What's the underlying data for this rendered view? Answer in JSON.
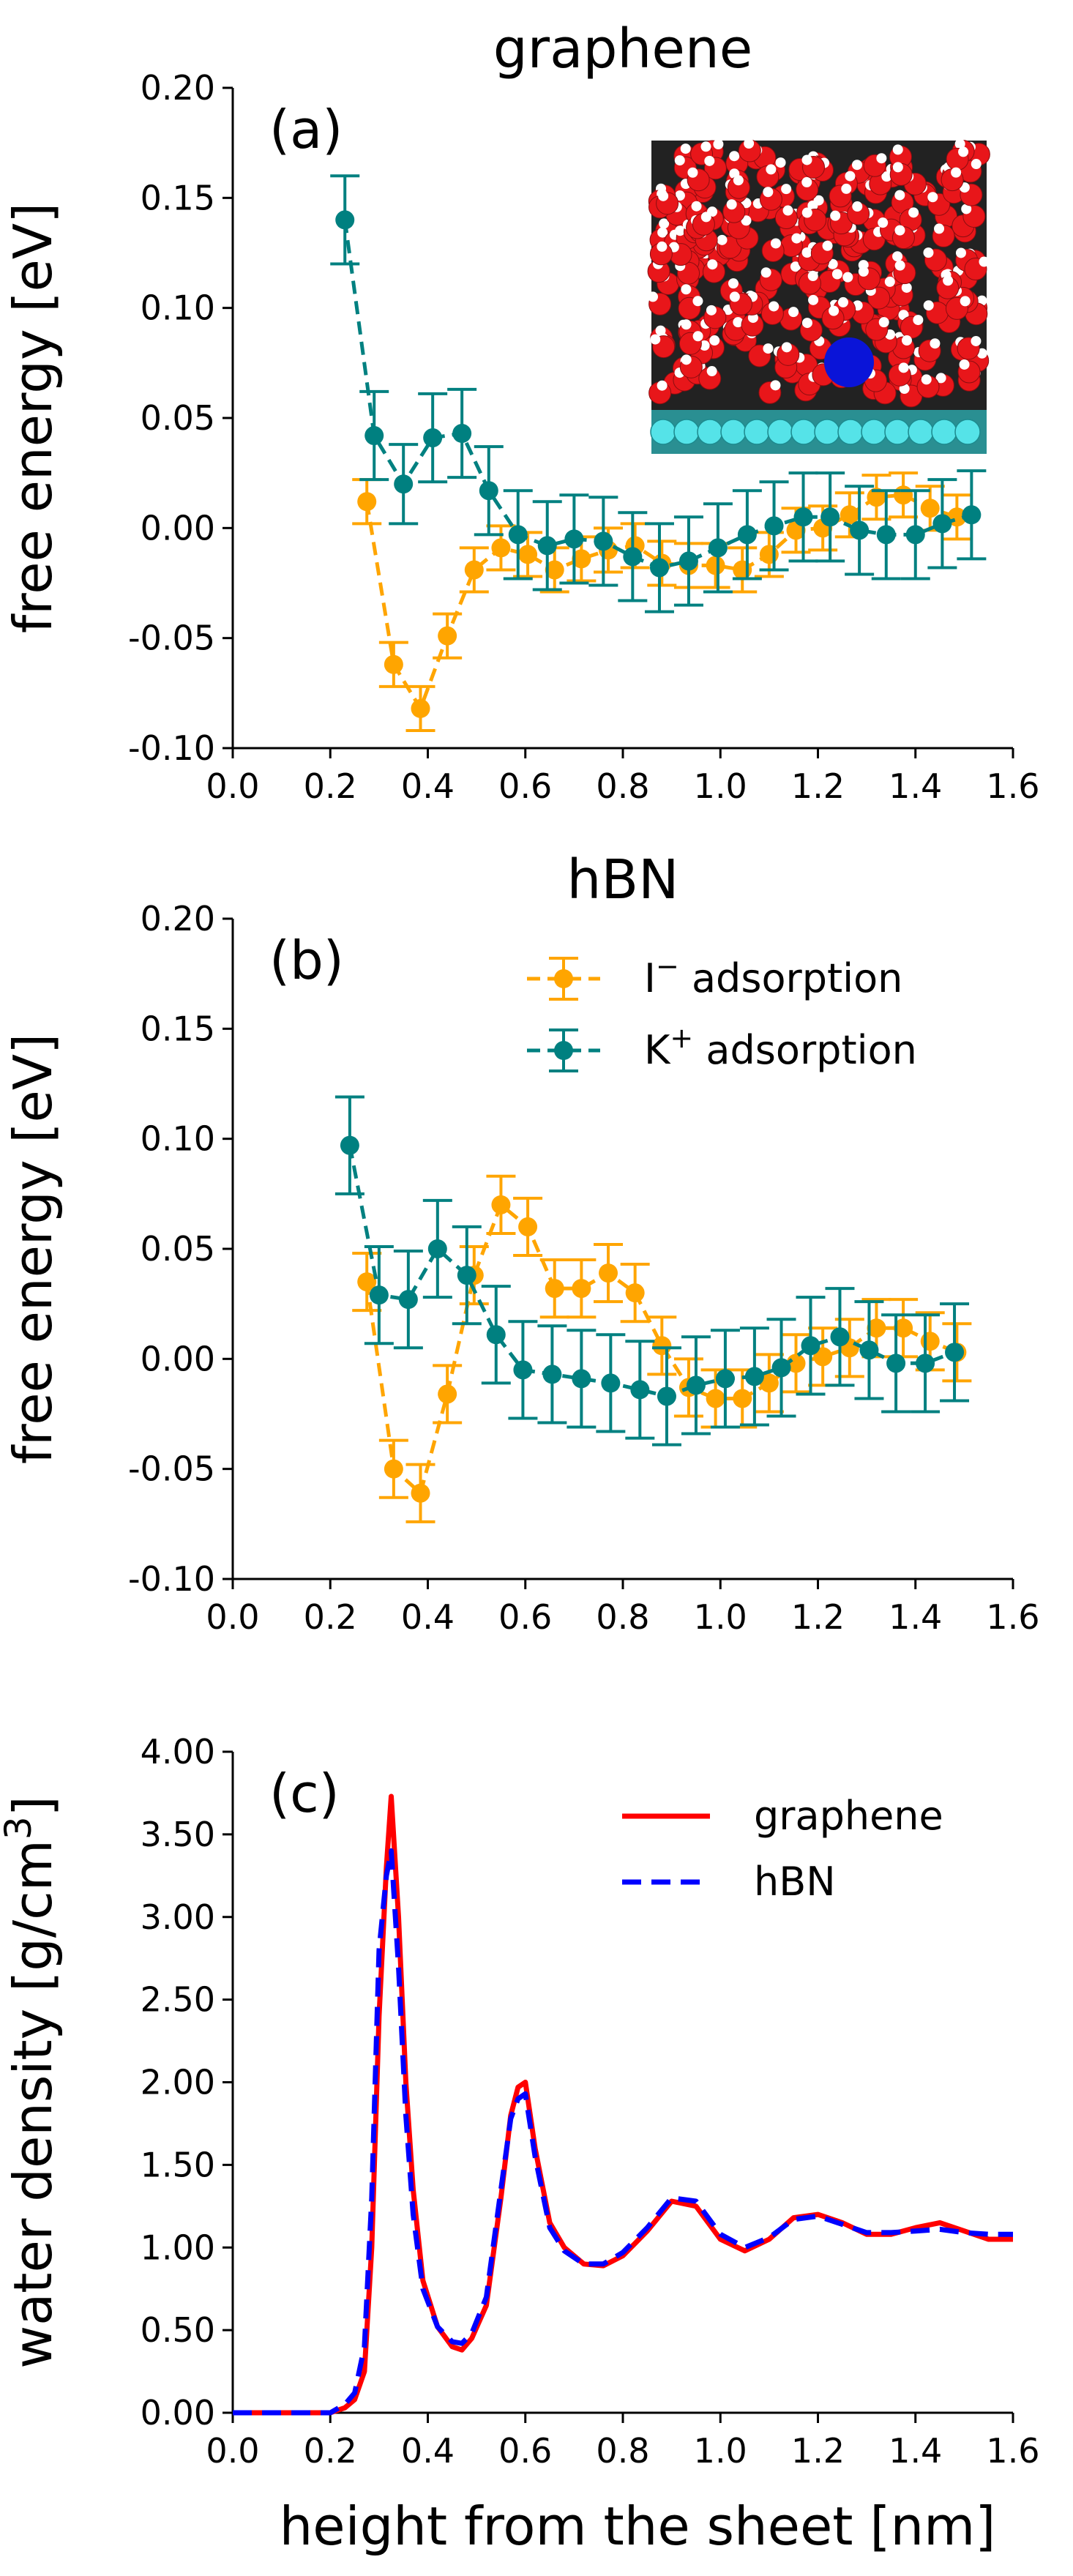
{
  "colors": {
    "iodide": "#ffa500",
    "potassium": "#008080",
    "graphene_line": "#ff0000",
    "hbn_line": "#0000ff",
    "water_oxygen": "#e8161a",
    "water_hydrogen": "#ffffff",
    "ion": "#0a14d8",
    "sheet": "#55e3e8"
  },
  "chart_data": [
    {
      "id": "a",
      "type": "scatter",
      "title": "graphene",
      "panel_label": "(a)",
      "xlabel": "",
      "ylabel": "free energy [eV]",
      "xlim": [
        0.0,
        1.6
      ],
      "ylim": [
        -0.1,
        0.2
      ],
      "xticks": [
        "0.0",
        "0.2",
        "0.4",
        "0.6",
        "0.8",
        "1.0",
        "1.2",
        "1.4",
        "1.6"
      ],
      "yticks": [
        "-0.10",
        "-0.05",
        "0.00",
        "0.05",
        "0.10",
        "0.15",
        "0.20"
      ],
      "inset": "simulation-snapshot",
      "series": [
        {
          "key": "iodide",
          "x": [
            0.275,
            0.33,
            0.385,
            0.44,
            0.495,
            0.55,
            0.605,
            0.66,
            0.715,
            0.77,
            0.825,
            0.88,
            0.935,
            0.99,
            1.045,
            1.1,
            1.155,
            1.21,
            1.265,
            1.32,
            1.375,
            1.43,
            1.485
          ],
          "y": [
            0.012,
            -0.062,
            -0.082,
            -0.049,
            -0.019,
            -0.009,
            -0.012,
            -0.019,
            -0.014,
            -0.01,
            -0.008,
            -0.016,
            -0.017,
            -0.017,
            -0.019,
            -0.012,
            -0.001,
            0.0,
            0.006,
            0.014,
            0.015,
            0.009,
            0.005
          ],
          "err": [
            0.01,
            0.01,
            0.01,
            0.01,
            0.01,
            0.01,
            0.01,
            0.01,
            0.01,
            0.01,
            0.01,
            0.01,
            0.01,
            0.01,
            0.01,
            0.01,
            0.01,
            0.01,
            0.01,
            0.01,
            0.01,
            0.01,
            0.01
          ]
        },
        {
          "key": "potassium",
          "x": [
            0.23,
            0.29,
            0.35,
            0.41,
            0.47,
            0.525,
            0.585,
            0.645,
            0.7,
            0.76,
            0.82,
            0.875,
            0.935,
            0.995,
            1.055,
            1.11,
            1.17,
            1.225,
            1.285,
            1.34,
            1.4,
            1.455,
            1.515
          ],
          "y": [
            0.14,
            0.042,
            0.02,
            0.041,
            0.043,
            0.017,
            -0.003,
            -0.008,
            -0.005,
            -0.006,
            -0.013,
            -0.018,
            -0.015,
            -0.009,
            -0.003,
            0.001,
            0.005,
            0.005,
            -0.001,
            -0.003,
            -0.003,
            0.002,
            0.006
          ],
          "err": [
            0.02,
            0.02,
            0.018,
            0.02,
            0.02,
            0.02,
            0.02,
            0.02,
            0.02,
            0.02,
            0.02,
            0.02,
            0.02,
            0.02,
            0.02,
            0.02,
            0.02,
            0.02,
            0.02,
            0.02,
            0.02,
            0.02,
            0.02
          ]
        }
      ]
    },
    {
      "id": "b",
      "type": "scatter",
      "title": "hBN",
      "panel_label": "(b)",
      "xlabel": "",
      "ylabel": "free energy [eV]",
      "xlim": [
        0.0,
        1.6
      ],
      "ylim": [
        -0.1,
        0.2
      ],
      "xticks": [
        "0.0",
        "0.2",
        "0.4",
        "0.6",
        "0.8",
        "1.0",
        "1.2",
        "1.4",
        "1.6"
      ],
      "yticks": [
        "-0.10",
        "-0.05",
        "0.00",
        "0.05",
        "0.10",
        "0.15",
        "0.20"
      ],
      "legend": {
        "placement": "top-right",
        "entries": [
          {
            "key": "iodide",
            "base": "I",
            "sup": "−",
            "rest": " adsorption"
          },
          {
            "key": "potassium",
            "base": "K",
            "sup": "+",
            "rest": " adsorption"
          }
        ]
      },
      "series": [
        {
          "key": "iodide",
          "x": [
            0.275,
            0.33,
            0.385,
            0.44,
            0.495,
            0.55,
            0.605,
            0.66,
            0.715,
            0.77,
            0.825,
            0.88,
            0.935,
            0.99,
            1.045,
            1.1,
            1.155,
            1.21,
            1.265,
            1.32,
            1.375,
            1.43,
            1.485
          ],
          "y": [
            0.035,
            -0.05,
            -0.061,
            -0.016,
            0.038,
            0.07,
            0.06,
            0.032,
            0.032,
            0.039,
            0.03,
            0.006,
            -0.013,
            -0.018,
            -0.018,
            -0.011,
            -0.002,
            0.001,
            0.005,
            0.014,
            0.014,
            0.008,
            0.003
          ],
          "err": [
            0.013,
            0.013,
            0.013,
            0.013,
            0.013,
            0.013,
            0.013,
            0.013,
            0.013,
            0.013,
            0.013,
            0.013,
            0.013,
            0.013,
            0.013,
            0.013,
            0.013,
            0.013,
            0.013,
            0.013,
            0.013,
            0.013,
            0.013
          ]
        },
        {
          "key": "potassium",
          "x": [
            0.24,
            0.3,
            0.36,
            0.42,
            0.48,
            0.54,
            0.595,
            0.655,
            0.715,
            0.775,
            0.835,
            0.89,
            0.95,
            1.01,
            1.07,
            1.125,
            1.185,
            1.245,
            1.305,
            1.36,
            1.42,
            1.48
          ],
          "y": [
            0.097,
            0.029,
            0.027,
            0.05,
            0.038,
            0.011,
            -0.005,
            -0.007,
            -0.009,
            -0.011,
            -0.014,
            -0.017,
            -0.012,
            -0.009,
            -0.008,
            -0.004,
            0.006,
            0.01,
            0.004,
            -0.002,
            -0.002,
            0.003
          ],
          "err": [
            0.022,
            0.022,
            0.022,
            0.022,
            0.022,
            0.022,
            0.022,
            0.022,
            0.022,
            0.022,
            0.022,
            0.022,
            0.022,
            0.022,
            0.022,
            0.022,
            0.022,
            0.022,
            0.022,
            0.022,
            0.022,
            0.022
          ]
        }
      ]
    },
    {
      "id": "c",
      "type": "line",
      "title": "",
      "panel_label": "(c)",
      "xlabel": "height from the sheet [nm]",
      "ylabel_base": "water density [g/cm",
      "ylabel_sup": "3",
      "ylabel_end": "]",
      "xlim": [
        0.0,
        1.6
      ],
      "ylim": [
        0.0,
        4.0
      ],
      "xticks": [
        "0.0",
        "0.2",
        "0.4",
        "0.6",
        "0.8",
        "1.0",
        "1.2",
        "1.4",
        "1.6"
      ],
      "yticks": [
        "0.00",
        "0.50",
        "1.00",
        "1.50",
        "2.00",
        "2.50",
        "3.00",
        "3.50",
        "4.00"
      ],
      "legend": {
        "placement": "top-right",
        "entries": [
          {
            "key": "graphene",
            "label": "graphene"
          },
          {
            "key": "hbn",
            "label": "hBN"
          }
        ]
      },
      "series": [
        {
          "key": "graphene",
          "x": [
            0.0,
            0.2,
            0.23,
            0.25,
            0.27,
            0.285,
            0.3,
            0.315,
            0.325,
            0.34,
            0.355,
            0.37,
            0.39,
            0.42,
            0.45,
            0.47,
            0.49,
            0.52,
            0.55,
            0.57,
            0.585,
            0.6,
            0.62,
            0.65,
            0.68,
            0.72,
            0.76,
            0.8,
            0.85,
            0.9,
            0.95,
            1.0,
            1.05,
            1.1,
            1.15,
            1.2,
            1.25,
            1.3,
            1.35,
            1.4,
            1.45,
            1.5,
            1.55,
            1.6
          ],
          "y": [
            0.0,
            0.0,
            0.03,
            0.08,
            0.25,
            1.0,
            2.4,
            3.3,
            3.73,
            3.0,
            2.0,
            1.35,
            0.8,
            0.52,
            0.4,
            0.38,
            0.45,
            0.65,
            1.3,
            1.8,
            1.97,
            2.0,
            1.6,
            1.15,
            1.0,
            0.9,
            0.89,
            0.95,
            1.1,
            1.28,
            1.25,
            1.05,
            0.98,
            1.05,
            1.18,
            1.2,
            1.15,
            1.08,
            1.08,
            1.12,
            1.15,
            1.1,
            1.05,
            1.05
          ]
        },
        {
          "key": "hbn",
          "x": [
            0.0,
            0.2,
            0.23,
            0.25,
            0.27,
            0.285,
            0.3,
            0.315,
            0.325,
            0.34,
            0.355,
            0.37,
            0.39,
            0.42,
            0.45,
            0.47,
            0.49,
            0.52,
            0.55,
            0.57,
            0.585,
            0.6,
            0.62,
            0.65,
            0.68,
            0.72,
            0.76,
            0.8,
            0.85,
            0.9,
            0.95,
            1.0,
            1.05,
            1.1,
            1.15,
            1.2,
            1.25,
            1.3,
            1.35,
            1.4,
            1.45,
            1.5,
            1.55,
            1.6
          ],
          "y": [
            0.0,
            0.0,
            0.05,
            0.12,
            0.4,
            1.3,
            2.8,
            3.25,
            3.4,
            2.7,
            1.8,
            1.2,
            0.75,
            0.52,
            0.43,
            0.42,
            0.48,
            0.7,
            1.35,
            1.78,
            1.9,
            1.93,
            1.55,
            1.12,
            0.98,
            0.9,
            0.9,
            0.97,
            1.12,
            1.3,
            1.28,
            1.08,
            1.0,
            1.06,
            1.17,
            1.19,
            1.14,
            1.09,
            1.09,
            1.1,
            1.11,
            1.09,
            1.08,
            1.08
          ]
        }
      ]
    }
  ]
}
